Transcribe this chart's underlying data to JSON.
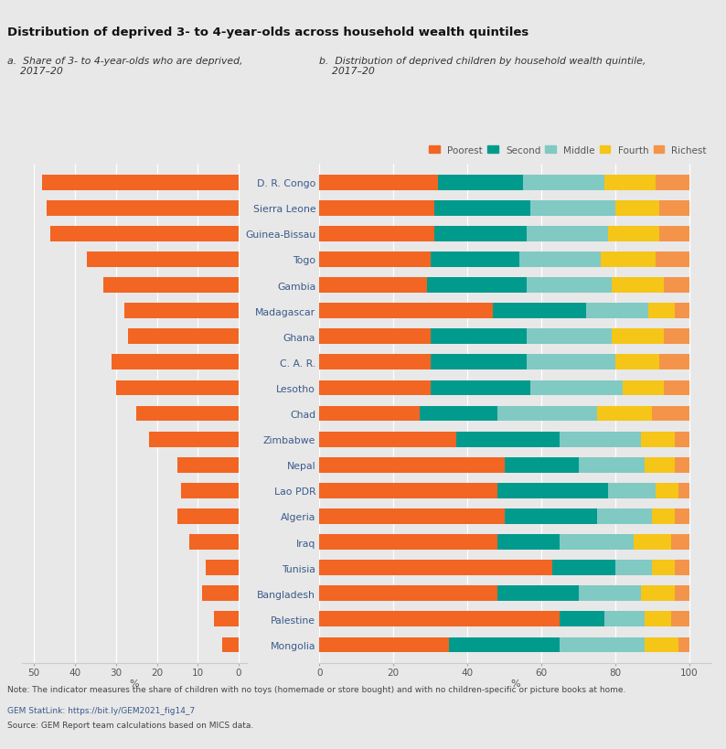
{
  "title": "Distribution of deprived 3- to 4-year-olds across household wealth quintiles",
  "subtitle_a": "a.  Share of 3- to 4-year-olds who are deprived,\n    2017–20",
  "subtitle_b": "b.  Distribution of deprived children by household wealth quintile,\n    2017–20",
  "countries": [
    "D. R. Congo",
    "Sierra Leone",
    "Guinea-Bissau",
    "Togo",
    "Gambia",
    "Madagascar",
    "Ghana",
    "C. A. R.",
    "Lesotho",
    "Chad",
    "Zimbabwe",
    "Nepal",
    "Lao PDR",
    "Algeria",
    "Iraq",
    "Tunisia",
    "Bangladesh",
    "Palestine",
    "Mongolia"
  ],
  "left_values": [
    48,
    47,
    46,
    37,
    33,
    28,
    27,
    31,
    30,
    25,
    22,
    15,
    14,
    15,
    12,
    8,
    9,
    6,
    4
  ],
  "right_data": {
    "Poorest": [
      32,
      31,
      31,
      30,
      29,
      47,
      30,
      30,
      30,
      27,
      37,
      50,
      48,
      50,
      48,
      63,
      48,
      65,
      35
    ],
    "Second": [
      23,
      26,
      25,
      24,
      27,
      25,
      26,
      26,
      27,
      21,
      28,
      20,
      30,
      25,
      17,
      17,
      22,
      12,
      30
    ],
    "Middle": [
      22,
      23,
      22,
      22,
      23,
      17,
      23,
      24,
      25,
      27,
      22,
      18,
      13,
      15,
      20,
      10,
      17,
      11,
      23
    ],
    "Fourth": [
      14,
      12,
      14,
      15,
      14,
      7,
      14,
      12,
      11,
      15,
      9,
      8,
      6,
      6,
      10,
      6,
      9,
      7,
      9
    ],
    "Richest": [
      9,
      8,
      8,
      9,
      7,
      4,
      7,
      8,
      7,
      10,
      4,
      4,
      3,
      4,
      5,
      4,
      4,
      5,
      3
    ]
  },
  "colors": {
    "Poorest": "#F26522",
    "Second": "#009B8D",
    "Middle": "#81C9C3",
    "Fourth": "#F5C518",
    "Richest": "#F4944A"
  },
  "left_color": "#F26522",
  "background_color": "#E8E8E8",
  "note": "Note: The indicator measures the share of children with no toys (homemade or store bought) and with no children-specific or picture books at home.",
  "source1": "GEM StatLink: https://bit.ly/GEM2021_fig14_7",
  "source2": "Source: GEM Report team calculations based on MICS data."
}
